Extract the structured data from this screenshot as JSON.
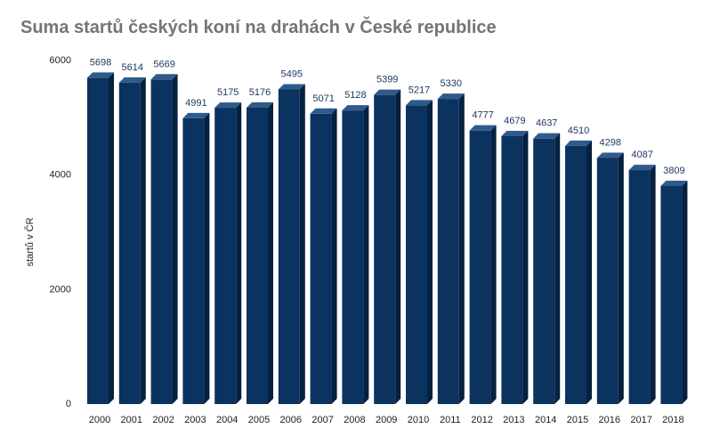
{
  "chart_data": {
    "type": "bar",
    "title": "Suma startů českých koní na drahách v České republice",
    "xlabel": "",
    "ylabel": "startů v ČR",
    "categories": [
      "2000",
      "2001",
      "2002",
      "2003",
      "2004",
      "2005",
      "2006",
      "2007",
      "2008",
      "2009",
      "2010",
      "2011",
      "2012",
      "2013",
      "2014",
      "2015",
      "2016",
      "2017",
      "2018"
    ],
    "values": [
      5698,
      5614,
      5669,
      4991,
      5175,
      5176,
      5495,
      5071,
      5128,
      5399,
      5217,
      5330,
      4777,
      4679,
      4637,
      4510,
      4298,
      4087,
      3809
    ],
    "y_ticks": [
      "0",
      "2000",
      "4000",
      "6000"
    ],
    "ylim": [
      0,
      6000
    ],
    "grid": false,
    "legend": "none",
    "colors": {
      "front": "#0b3360",
      "side": "#06203f",
      "top": "#2f5b8c",
      "label": "#1f3864",
      "title": "#757575"
    }
  }
}
